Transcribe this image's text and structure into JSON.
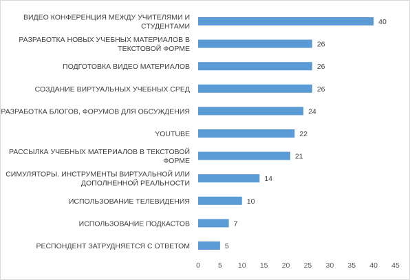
{
  "chart_data": {
    "type": "bar",
    "orientation": "horizontal",
    "categories": [
      [
        "ВИДЕО КОНФЕРЕНЦИЯ МЕЖДУ УЧИТЕЛЯМИ И",
        "СТУДЕНТАМИ"
      ],
      [
        "РАЗРАБОТКА НОВЫХ УЧЕБНЫХ МАТЕРИАЛОВ В",
        "ТЕКСТОВОЙ ФОРМЕ"
      ],
      [
        "ПОДГОТОВКА ВИДЕО МАТЕРИАЛОВ"
      ],
      [
        "СОЗДАНИЕ ВИРТУАЛЬНЫХ УЧЕБНЫХ СРЕД"
      ],
      [
        "РАЗРАБОТКА БЛОГОВ, ФОРУМОВ  ДЛЯ ОБСУЖДЕНИЯ"
      ],
      [
        "YOUTUBE"
      ],
      [
        "РАССЫЛКА  УЧЕБНЫХ МАТЕРИАЛОВ В ТЕКСТОВОЙ",
        "ФОРМЕ"
      ],
      [
        "СИМУЛЯТОРЫ.  ИНСТРУМЕНТЫ ВИРТУАЛЬНОЙ ИЛИ",
        "ДОПОЛНЕННОЙ РЕАЛЬНОСТИ"
      ],
      [
        "ИСПОЛЬЗОВАНИЕ ТЕЛЕВИДЕНИЯ"
      ],
      [
        "ИСПОЛЬЗОВАНИЕ ПОДКАСТОВ"
      ],
      [
        "РЕСПОНДЕНТ ЗАТРУДНЯЕТСЯ С ОТВЕТОМ"
      ]
    ],
    "values": [
      40,
      26,
      26,
      26,
      24,
      22,
      21,
      14,
      10,
      7,
      5
    ],
    "value_labels": [
      "40",
      "26",
      "26",
      "26",
      "24",
      "22",
      "21",
      "14",
      "10",
      "7",
      "5"
    ],
    "xlim": [
      0,
      45
    ],
    "xticks": [
      0,
      5,
      10,
      15,
      20,
      25,
      30,
      35,
      40,
      45
    ],
    "xtick_labels": [
      "0",
      "5",
      "10",
      "15",
      "20",
      "25",
      "30",
      "35",
      "40",
      "45"
    ],
    "grid": false,
    "legend": "none",
    "bar_color": "#5b9bd5"
  }
}
